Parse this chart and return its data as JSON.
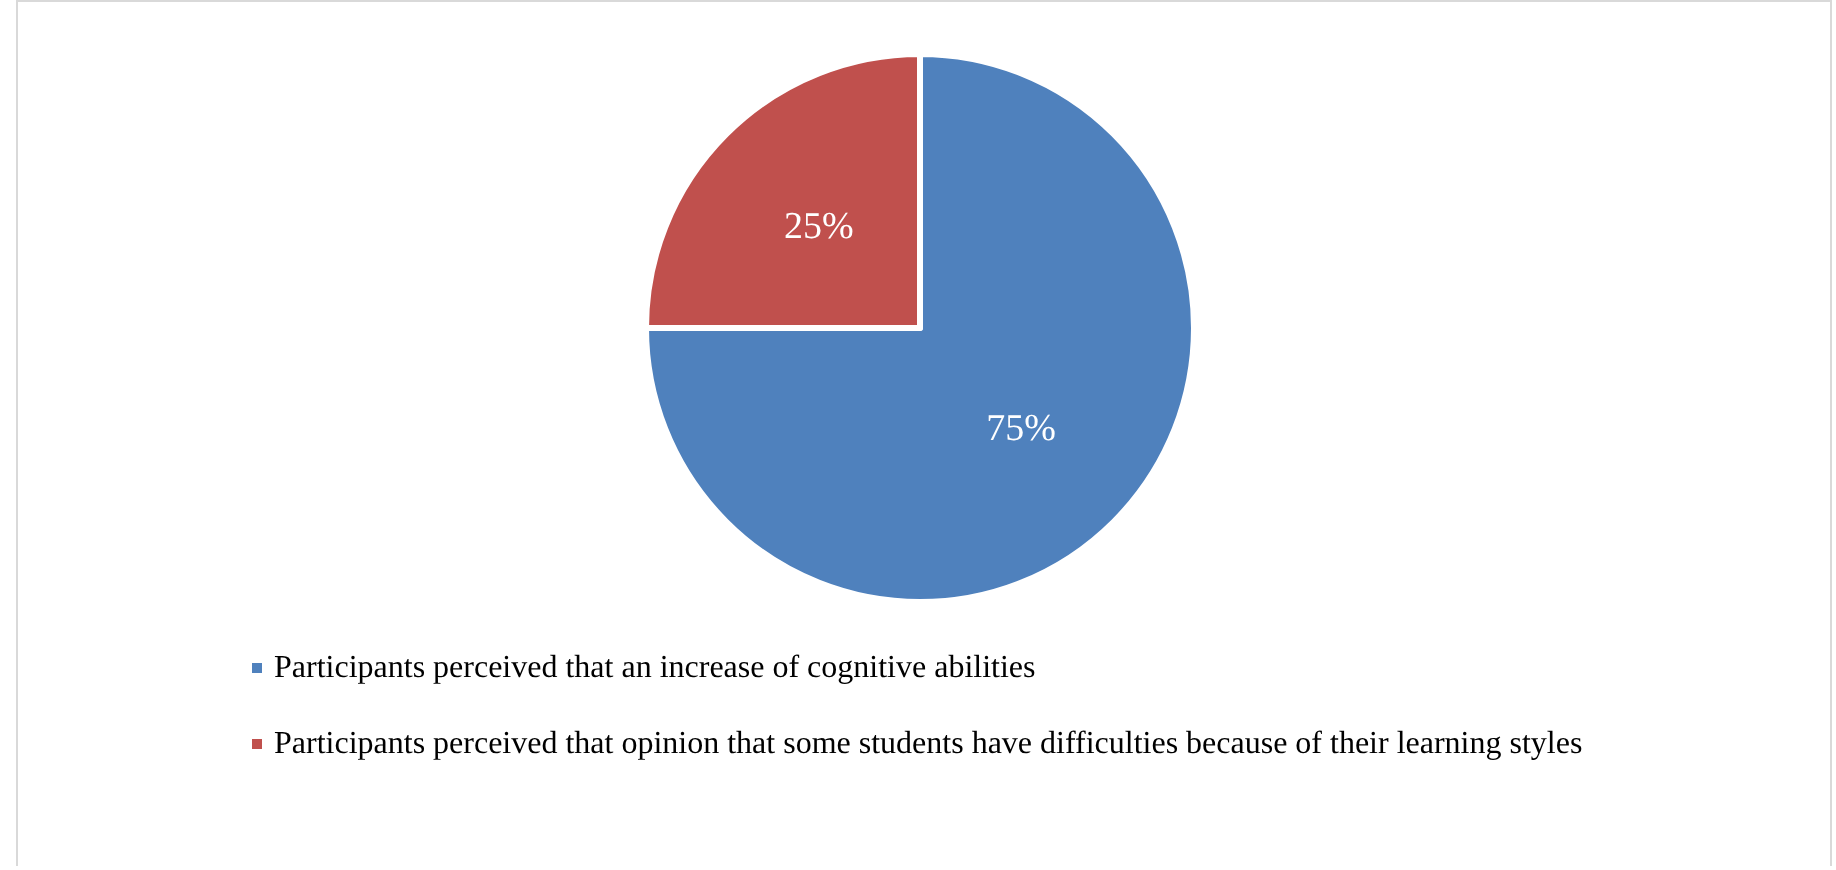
{
  "chart_data": {
    "type": "pie",
    "categories": [
      "Participants perceived that an increase of cognitive abilities",
      "Participants perceived that opinion that some students have difficulties because of their learning styles"
    ],
    "values": [
      75,
      25
    ],
    "colors": [
      "#4f81bd",
      "#c0504d"
    ],
    "value_labels": [
      "75%",
      "25%"
    ],
    "legend": "bottom"
  }
}
